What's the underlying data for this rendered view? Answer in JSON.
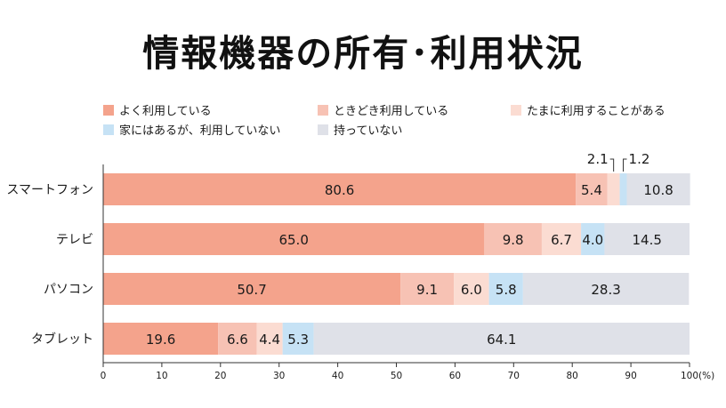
{
  "title": "情報機器の所有･利用状況",
  "chart_data": {
    "type": "bar",
    "orientation": "horizontal",
    "stacked": true,
    "title": "情報機器の所有･利用状況",
    "categories": [
      "スマートフォン",
      "テレビ",
      "パソコン",
      "タブレット"
    ],
    "series": [
      {
        "name": "よく利用している",
        "color": "#f4a38c",
        "values": [
          80.6,
          65.0,
          50.7,
          19.6
        ]
      },
      {
        "name": "ときどき利用している",
        "color": "#f7c2b4",
        "values": [
          5.4,
          9.8,
          9.1,
          6.6
        ]
      },
      {
        "name": "たまに利用することがある",
        "color": "#fbdcd2",
        "values": [
          2.1,
          6.7,
          6.0,
          4.4
        ]
      },
      {
        "name": "家にはあるが、利用していない",
        "color": "#c6e2f5",
        "values": [
          1.2,
          4.0,
          5.8,
          5.3
        ]
      },
      {
        "name": "持っていない",
        "color": "#dfe1e8",
        "values": [
          10.8,
          14.5,
          28.3,
          64.1
        ]
      }
    ],
    "labels": [
      [
        "80.6",
        "5.4",
        "2.1",
        "1.2",
        "10.8"
      ],
      [
        "65.0",
        "9.8",
        "6.7",
        "4.0",
        "14.5"
      ],
      [
        "50.7",
        "9.1",
        "6.0",
        "5.8",
        "28.3"
      ],
      [
        "19.6",
        "6.6",
        "4.4",
        "5.3",
        "64.1"
      ]
    ],
    "xlim": [
      0,
      100
    ],
    "xticks": [
      "0",
      "10",
      "20",
      "30",
      "40",
      "50",
      "60",
      "70",
      "80",
      "90",
      "100"
    ],
    "xunit": "(%)",
    "legend_position": "top",
    "grid": false
  }
}
